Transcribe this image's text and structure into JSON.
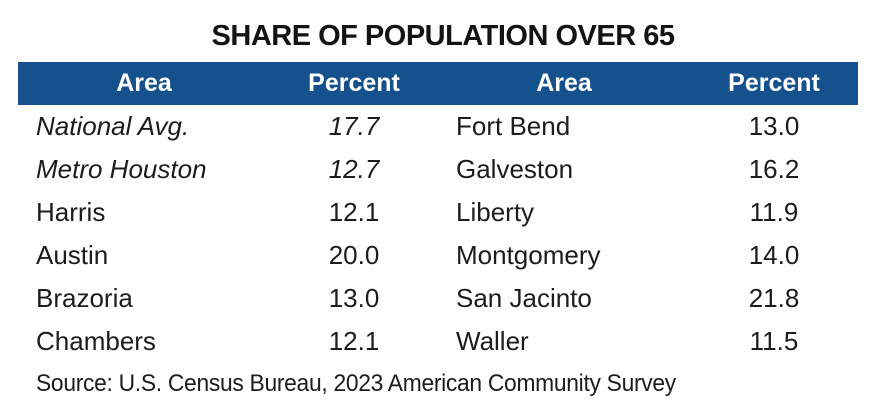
{
  "title": "SHARE OF POPULATION OVER 65",
  "colors": {
    "header_bg": "#15518D",
    "header_text": "#FFFFFF",
    "body_text": "#1C1C1C"
  },
  "table": {
    "headers": [
      "Area",
      "Percent",
      "Area",
      "Percent"
    ],
    "rows": [
      {
        "c0": "National Avg.",
        "c1": "17.7",
        "c2": "Fort Bend",
        "c3": "13.0"
      },
      {
        "c0": "Metro Houston",
        "c1": "12.7",
        "c2": "Galveston",
        "c3": "16.2"
      },
      {
        "c0": "Harris",
        "c1": "12.1",
        "c2": "Liberty",
        "c3": "11.9"
      },
      {
        "c0": "Austin",
        "c1": "20.0",
        "c2": "Montgomery",
        "c3": "14.0"
      },
      {
        "c0": "Brazoria",
        "c1": "13.0",
        "c2": "San Jacinto",
        "c3": "21.8"
      },
      {
        "c0": "Chambers",
        "c1": "12.1",
        "c2": "Waller",
        "c3": "11.5"
      }
    ]
  },
  "source": "Source: U.S. Census Bureau, 2023 American Community Survey",
  "chart_data": {
    "type": "table",
    "title": "SHARE OF POPULATION OVER 65",
    "columns": [
      "Area",
      "Percent",
      "Area",
      "Percent"
    ],
    "rows": [
      [
        "National Avg.",
        17.7,
        "Fort Bend",
        13.0
      ],
      [
        "Metro Houston",
        12.7,
        "Galveston",
        16.2
      ],
      [
        "Harris",
        12.1,
        "Liberty",
        11.9
      ],
      [
        "Austin",
        20.0,
        "Montgomery",
        14.0
      ],
      [
        "Brazoria",
        13.0,
        "San Jacinto",
        21.8
      ],
      [
        "Chambers",
        12.1,
        "Waller",
        11.5
      ]
    ],
    "units": "percent of population over 65",
    "emphasized_rows": [
      "National Avg.",
      "Metro Houston"
    ],
    "source": "Source: U.S. Census Bureau, 2023 American Community Survey"
  }
}
